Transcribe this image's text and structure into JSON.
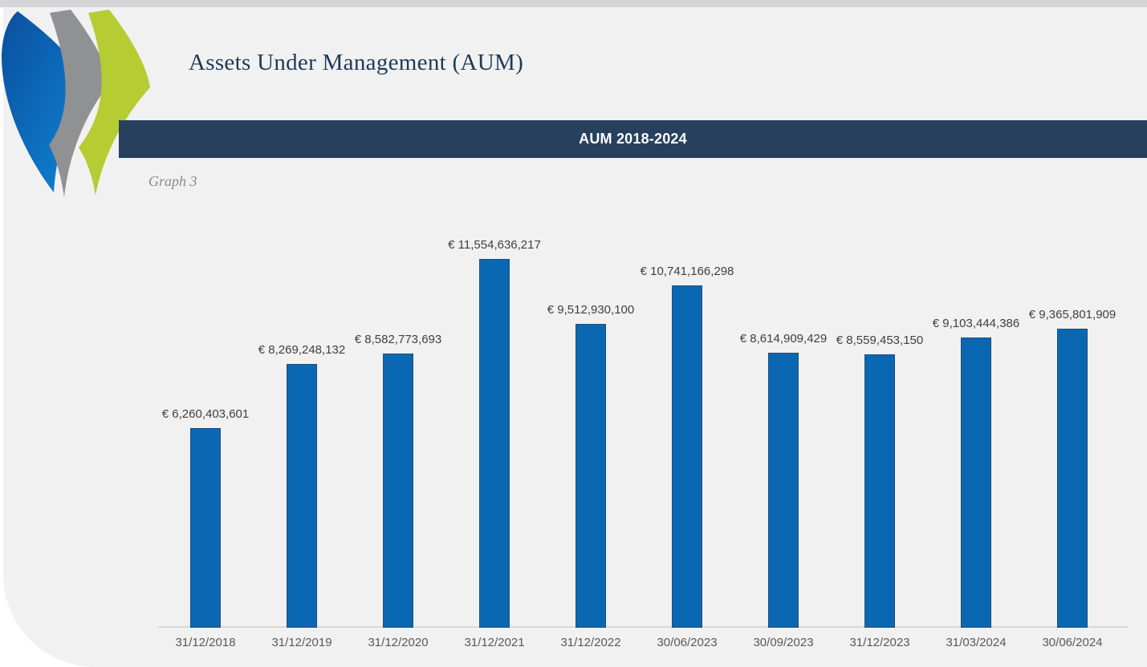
{
  "page": {
    "title": "Assets Under Management (AUM)",
    "caption": "Graph 3"
  },
  "banner": {
    "label": "AUM 2018-2024",
    "background": "#27405d",
    "text_color": "#ffffff"
  },
  "logo": {
    "name": "three-chevron-swoosh-logo",
    "colors": {
      "blue_dark": "#0b4f9e",
      "blue_light": "#0e87d2",
      "gray": "#8f9193",
      "green": "#b5cc33"
    }
  },
  "chart_data": {
    "type": "bar",
    "title": "AUM 2018-2024",
    "currency": "EUR",
    "categories": [
      "31/12/2018",
      "31/12/2019",
      "31/12/2020",
      "31/12/2021",
      "31/12/2022",
      "30/06/2023",
      "30/09/2023",
      "31/12/2023",
      "31/03/2024",
      "30/06/2024"
    ],
    "values": [
      6260403601,
      8269248132,
      8582773693,
      11554636217,
      9512930100,
      10741166298,
      8614909429,
      8559453150,
      9103444386,
      9365801909
    ],
    "labels": [
      "€ 6,260,403,601",
      "€ 8,269,248,132",
      "€ 8,582,773,693",
      "€ 11,554,636,217",
      "€ 9,512,930,100",
      "€ 10,741,166,298",
      "€ 8,614,909,429",
      "€ 8,559,453,150",
      "€ 9,103,444,386",
      "€ 9,365,801,909"
    ],
    "xlabel": "",
    "ylabel": "",
    "ylim": [
      0,
      12000000000
    ],
    "grid": false,
    "legend": "none",
    "bar_color": "#0a68b2",
    "bar_border_color": "#1f4e79",
    "label_color": "#3f3f3f",
    "tick_color": "#595959",
    "axis_line_color": "#d9d9d9"
  },
  "colors": {
    "page_background": "#f1f1f2",
    "outer_background": "#ffffff",
    "top_strip": "#d5d5d7",
    "title_text": "#1e3a56",
    "caption_text": "#8a8a8a"
  }
}
